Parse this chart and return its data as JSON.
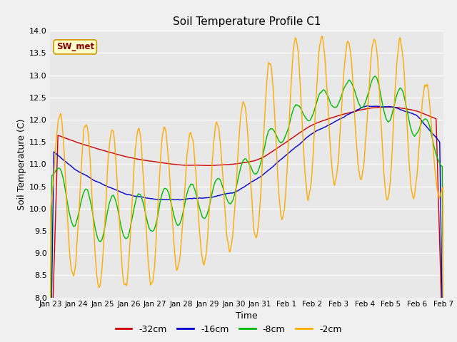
{
  "title": "Soil Temperature Profile C1",
  "xlabel": "Time",
  "ylabel": "Soil Temperature (C)",
  "ylim": [
    8.0,
    14.0
  ],
  "yticks": [
    8.0,
    8.5,
    9.0,
    9.5,
    10.0,
    10.5,
    11.0,
    11.5,
    12.0,
    12.5,
    13.0,
    13.5,
    14.0
  ],
  "xtick_labels": [
    "Jan 23",
    "Jan 24",
    "Jan 25",
    "Jan 26",
    "Jan 27",
    "Jan 28",
    "Jan 29",
    "Jan 30",
    "Jan 31",
    "Feb 1",
    "Feb 2",
    "Feb 3",
    "Feb 4",
    "Feb 5",
    "Feb 6",
    "Feb 7"
  ],
  "series_colors": {
    "-32cm": "#cc0000",
    "-16cm": "#0000cc",
    "-8cm": "#00bb00",
    "-2cm": "#ffaa00"
  },
  "legend_label": "SW_met",
  "fig_bg": "#f0f0f0",
  "plot_bg": "#e8e8e8",
  "grid_color": "#ffffff"
}
